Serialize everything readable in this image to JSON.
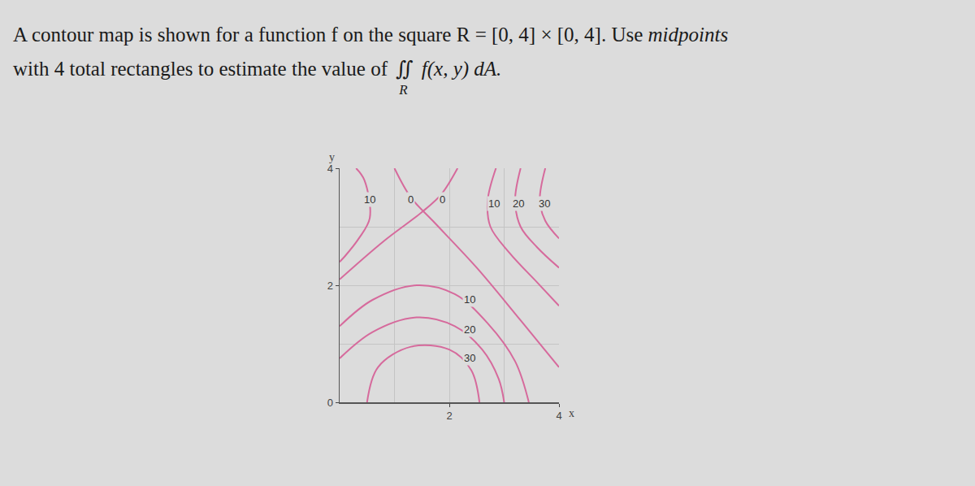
{
  "problem": {
    "line1": [
      {
        "text": "A contour map is shown for a function f on the square R = [0, 4] × [0, 4]. Use ",
        "italic": false
      },
      {
        "text": "midpoints",
        "italic": true
      }
    ],
    "line2": {
      "before": "with 4 total rectangles to estimate the value of",
      "integral": "∬",
      "subscript": "R",
      "after": "f(x, y) dA."
    }
  },
  "chart_data": {
    "type": "contour_lines",
    "x_label": "x",
    "y_label": "y",
    "xlim": [
      0,
      4
    ],
    "ylim": [
      0,
      4
    ],
    "xticks": [
      2,
      4
    ],
    "yticks": [
      0,
      2,
      4
    ],
    "grid": true,
    "color": "#d66a9c",
    "series": [
      {
        "level": 10,
        "x": [
          0.3,
          0.45,
          0.55,
          0.35,
          0.1,
          0
        ],
        "y": [
          4,
          3.8,
          3.15,
          2.8,
          2.5,
          2.4
        ],
        "label_at": [
          0.55,
          3.47
        ]
      },
      {
        "level": 0,
        "x": [
          1.0,
          1.3,
          1.7,
          2.5,
          3.3,
          4
        ],
        "y": [
          4,
          3.5,
          3.1,
          2.3,
          1.4,
          0.6
        ],
        "label_at": [
          1.29,
          3.47
        ]
      },
      {
        "level": 0,
        "x": [
          0,
          0.8,
          1.5,
          1.85,
          2.15
        ],
        "y": [
          2.1,
          2.75,
          3.25,
          3.55,
          4
        ],
        "label_at": [
          1.88,
          3.47
        ]
      },
      {
        "level": 10,
        "x": [
          2.85,
          2.7,
          2.75,
          3.1,
          3.6,
          4
        ],
        "y": [
          4,
          3.45,
          3.0,
          2.55,
          2.05,
          1.65
        ],
        "label_at": [
          2.81,
          3.4
        ]
      },
      {
        "level": 20,
        "x": [
          3.3,
          3.2,
          3.3,
          3.6,
          4
        ],
        "y": [
          4,
          3.45,
          3.0,
          2.65,
          2.3
        ],
        "label_at": [
          3.26,
          3.4
        ]
      },
      {
        "level": 30,
        "x": [
          3.75,
          3.65,
          3.75,
          4
        ],
        "y": [
          4,
          3.45,
          3.1,
          2.8
        ],
        "label_at": [
          3.73,
          3.4
        ]
      },
      {
        "level": 10,
        "x": [
          0,
          0.6,
          1.4,
          2.1,
          2.7,
          3.2,
          3.45
        ],
        "y": [
          1.3,
          1.75,
          2.0,
          1.85,
          1.35,
          0.7,
          0
        ],
        "label_at": [
          2.37,
          1.76
        ]
      },
      {
        "level": 20,
        "x": [
          0,
          0.6,
          1.4,
          2.1,
          2.6,
          2.9,
          3.0
        ],
        "y": [
          0.75,
          1.2,
          1.45,
          1.3,
          0.9,
          0.4,
          0
        ],
        "label_at": [
          2.37,
          1.25
        ]
      },
      {
        "level": 30,
        "x": [
          0.5,
          0.7,
          1.3,
          2.0,
          2.4,
          2.55
        ],
        "y": [
          0,
          0.6,
          0.95,
          0.9,
          0.55,
          0
        ],
        "label_at": [
          2.37,
          0.76
        ]
      }
    ]
  }
}
